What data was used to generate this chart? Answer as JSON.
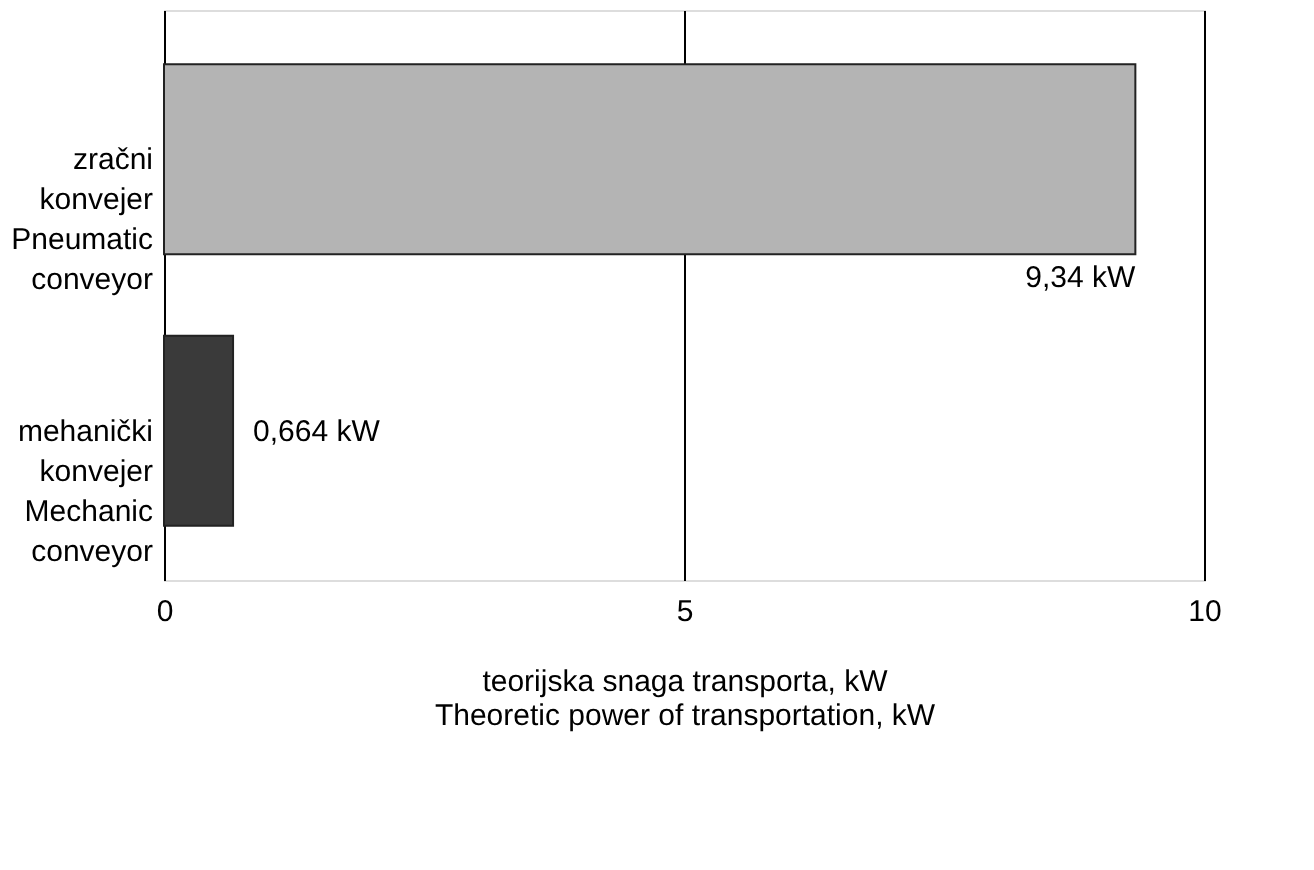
{
  "chart_data": {
    "type": "bar",
    "orientation": "horizontal",
    "categories": [
      "zračni\nkonvejer\nPneumatic\nconveyor",
      "mehanički\nkonvejer\nMechanic\nconveyor"
    ],
    "values": [
      9.34,
      0.664
    ],
    "colors": [
      "#b4b4b4",
      "#3a3a3a"
    ],
    "value_labels": [
      "9,34 kW",
      "0,664 kW"
    ],
    "xlabel": "teorijska snaga transporta, kW\nTheoretic power of transportation, kW",
    "xlim": [
      0,
      10
    ],
    "xticks": [
      0,
      5,
      10
    ],
    "grid": "x"
  }
}
